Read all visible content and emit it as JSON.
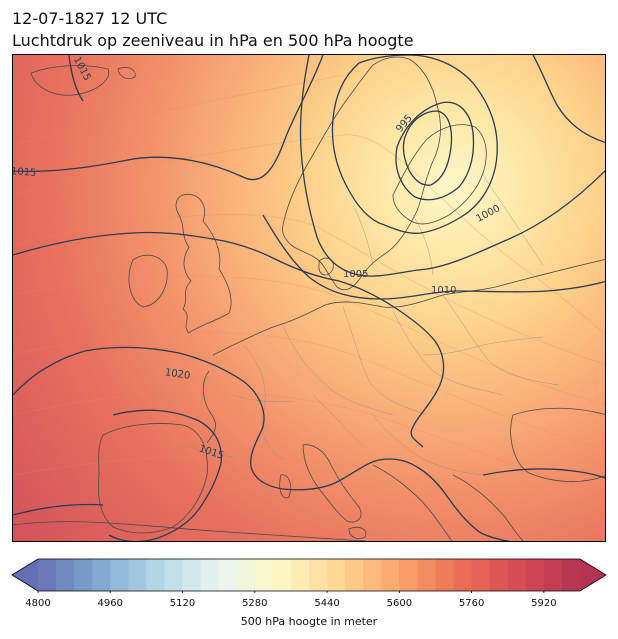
{
  "header": {
    "datetime": "12-07-1827 12 UTC",
    "title": "Luchtdruk op zeeniveau in hPa en 500 hPa hoogte"
  },
  "map": {
    "region": "Europe",
    "fill_field": "500 hPa geopotential height",
    "contour_field": "mean sea level pressure",
    "isobar_labels": [
      {
        "id": "isobar-label-1015-nw",
        "text": "1015"
      },
      {
        "id": "isobar-label-1015-w",
        "text": "1015"
      },
      {
        "id": "isobar-label-995",
        "text": "995"
      },
      {
        "id": "isobar-label-1000",
        "text": "1000"
      },
      {
        "id": "isobar-label-1005",
        "text": "1005"
      },
      {
        "id": "isobar-label-1010",
        "text": "1010"
      },
      {
        "id": "isobar-label-1020",
        "text": "1020"
      },
      {
        "id": "isobar-label-1015-s",
        "text": "1015"
      }
    ],
    "colors": {
      "isobar": "#2a3b52",
      "coastline": "#4a4a4a",
      "border": "#8a8a8a"
    }
  },
  "colorbar": {
    "label": "500 hPa hoogte in meter",
    "min": 4800,
    "max": 6000,
    "step": 40,
    "extend": "both",
    "ticks": [
      "4800",
      "4960",
      "5120",
      "5280",
      "5440",
      "5600",
      "5760",
      "5920"
    ],
    "colormap": "RdYlBu_r",
    "stops": [
      "#6470b4",
      "#7fa8cf",
      "#b6d8e8",
      "#e8f5f0",
      "#fdf8c4",
      "#fed592",
      "#f9a46a",
      "#ea6f55",
      "#d64a55",
      "#b23452"
    ]
  }
}
